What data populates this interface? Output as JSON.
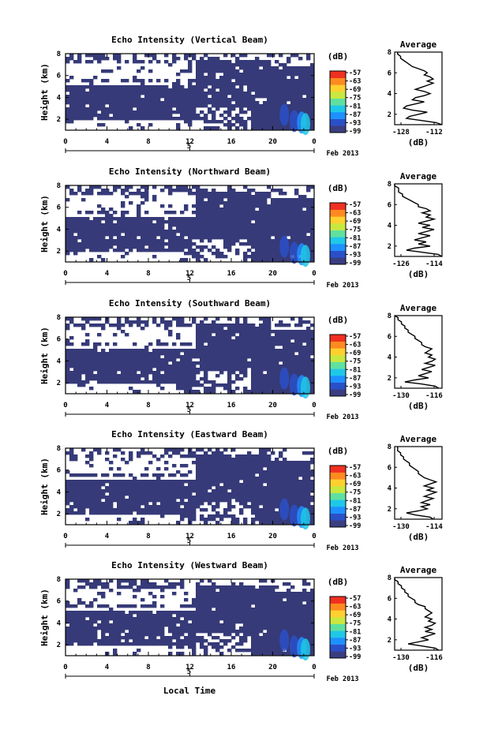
{
  "figure": {
    "xlabel": "Local Time",
    "date_label": "Feb 2013",
    "colorbar_unit": "(dB)",
    "colorbar_ticks": [
      "-57",
      "-63",
      "-69",
      "-75",
      "-81",
      "-87",
      "-93",
      "-99"
    ],
    "colors": {
      "background_echo": "#363a78",
      "colorbar": [
        "#3a3e80",
        "#2a50c8",
        "#1e90ff",
        "#20c8e8",
        "#60e0a0",
        "#c8e840",
        "#ffd030",
        "#ff8a20",
        "#f03020"
      ]
    }
  },
  "chart_data": [
    {
      "type": "heatmap",
      "title": "Echo Intensity (Vertical Beam)",
      "ylabel": "Height (km)",
      "xticks": [
        "0",
        "4",
        "8",
        "12",
        "16",
        "20",
        "0"
      ],
      "xsubtick": "5",
      "yticks": [
        "2",
        "4",
        "6",
        "8"
      ],
      "xlim": [
        0,
        24
      ],
      "ylim": [
        1,
        8
      ],
      "profile": {
        "title": "Average",
        "xlabel": "(dB)",
        "xticks": [
          "-128",
          "-112"
        ],
        "yticks": [
          "2",
          "4",
          "6",
          "8"
        ],
        "xlim": [
          -128,
          -112
        ],
        "values": [
          [
            1.0,
            -112
          ],
          [
            1.2,
            -114
          ],
          [
            1.4,
            -119
          ],
          [
            1.6,
            -124
          ],
          [
            1.8,
            -123
          ],
          [
            2.0,
            -120
          ],
          [
            2.2,
            -117
          ],
          [
            2.4,
            -122
          ],
          [
            2.6,
            -125
          ],
          [
            2.8,
            -124
          ],
          [
            3.0,
            -121
          ],
          [
            3.2,
            -118
          ],
          [
            3.4,
            -122
          ],
          [
            3.6,
            -121
          ],
          [
            3.8,
            -118
          ],
          [
            4.0,
            -116
          ],
          [
            4.2,
            -118
          ],
          [
            4.4,
            -121
          ],
          [
            4.6,
            -119
          ],
          [
            4.8,
            -117
          ],
          [
            5.0,
            -115
          ],
          [
            5.2,
            -117
          ],
          [
            5.4,
            -115
          ],
          [
            5.6,
            -116
          ],
          [
            5.8,
            -118
          ],
          [
            6.0,
            -117
          ],
          [
            6.2,
            -118
          ],
          [
            6.4,
            -120
          ],
          [
            6.6,
            -122
          ],
          [
            6.8,
            -123
          ],
          [
            7.0,
            -124
          ],
          [
            7.2,
            -125
          ],
          [
            7.4,
            -126
          ],
          [
            7.6,
            -126
          ],
          [
            7.8,
            -127
          ],
          [
            8.0,
            -127
          ]
        ]
      }
    },
    {
      "type": "heatmap",
      "title": "Echo Intensity (Northward Beam)",
      "ylabel": "Height (km)",
      "xticks": [
        "0",
        "4",
        "8",
        "12",
        "16",
        "20",
        "0"
      ],
      "xsubtick": "5",
      "yticks": [
        "2",
        "4",
        "6",
        "8"
      ],
      "xlim": [
        0,
        24
      ],
      "ylim": [
        1,
        8
      ],
      "profile": {
        "title": "Average",
        "xlabel": "(dB)",
        "xticks": [
          "-126",
          "-114"
        ],
        "yticks": [
          "2",
          "4",
          "6",
          "8"
        ],
        "xlim": [
          -126,
          -114
        ],
        "values": [
          [
            1.0,
            -114
          ],
          [
            1.2,
            -115
          ],
          [
            1.4,
            -119
          ],
          [
            1.6,
            -123
          ],
          [
            1.8,
            -121
          ],
          [
            2.0,
            -117
          ],
          [
            2.2,
            -120
          ],
          [
            2.4,
            -118
          ],
          [
            2.6,
            -121
          ],
          [
            2.8,
            -119
          ],
          [
            3.0,
            -117
          ],
          [
            3.2,
            -120
          ],
          [
            3.4,
            -118
          ],
          [
            3.6,
            -116
          ],
          [
            3.8,
            -119
          ],
          [
            4.0,
            -117
          ],
          [
            4.2,
            -120
          ],
          [
            4.4,
            -118
          ],
          [
            4.6,
            -116
          ],
          [
            4.8,
            -118
          ],
          [
            5.0,
            -117
          ],
          [
            5.2,
            -119
          ],
          [
            5.4,
            -117
          ],
          [
            5.6,
            -118
          ],
          [
            5.8,
            -120
          ],
          [
            6.0,
            -120
          ],
          [
            6.2,
            -121
          ],
          [
            6.4,
            -122
          ],
          [
            6.6,
            -123
          ],
          [
            6.8,
            -124
          ],
          [
            7.0,
            -124
          ],
          [
            7.2,
            -125
          ],
          [
            7.4,
            -125
          ],
          [
            7.6,
            -125
          ],
          [
            7.8,
            -126
          ],
          [
            8.0,
            -126
          ]
        ]
      }
    },
    {
      "type": "heatmap",
      "title": "Echo Intensity (Southward Beam)",
      "ylabel": "Height (km)",
      "xticks": [
        "0",
        "4",
        "8",
        "12",
        "16",
        "20",
        "0"
      ],
      "xsubtick": "5",
      "yticks": [
        "2",
        "4",
        "6",
        "8"
      ],
      "xlim": [
        0,
        24
      ],
      "ylim": [
        1,
        8
      ],
      "profile": {
        "title": "Average",
        "xlabel": "(dB)",
        "xticks": [
          "-130",
          "-116"
        ],
        "yticks": [
          "2",
          "4",
          "6",
          "8"
        ],
        "xlim": [
          -130,
          -116
        ],
        "values": [
          [
            1.0,
            -117
          ],
          [
            1.2,
            -118
          ],
          [
            1.4,
            -122
          ],
          [
            1.6,
            -127
          ],
          [
            1.8,
            -124
          ],
          [
            2.0,
            -120
          ],
          [
            2.2,
            -123
          ],
          [
            2.4,
            -121
          ],
          [
            2.6,
            -119
          ],
          [
            2.8,
            -122
          ],
          [
            3.0,
            -120
          ],
          [
            3.2,
            -118
          ],
          [
            3.4,
            -121
          ],
          [
            3.6,
            -119
          ],
          [
            3.8,
            -118
          ],
          [
            4.0,
            -120
          ],
          [
            4.2,
            -119
          ],
          [
            4.4,
            -121
          ],
          [
            4.6,
            -120
          ],
          [
            4.8,
            -119
          ],
          [
            5.0,
            -121
          ],
          [
            5.2,
            -122
          ],
          [
            5.4,
            -122
          ],
          [
            5.6,
            -123
          ],
          [
            5.8,
            -124
          ],
          [
            6.0,
            -124
          ],
          [
            6.2,
            -125
          ],
          [
            6.4,
            -126
          ],
          [
            6.6,
            -126
          ],
          [
            6.8,
            -127
          ],
          [
            7.0,
            -127
          ],
          [
            7.2,
            -128
          ],
          [
            7.4,
            -128
          ],
          [
            7.6,
            -129
          ],
          [
            7.8,
            -129
          ],
          [
            8.0,
            -130
          ]
        ]
      }
    },
    {
      "type": "heatmap",
      "title": "Echo Intensity (Eastward Beam)",
      "ylabel": "Height (km)",
      "xticks": [
        "0",
        "4",
        "8",
        "12",
        "16",
        "20",
        "0"
      ],
      "xsubtick": "5",
      "yticks": [
        "2",
        "4",
        "6",
        "8"
      ],
      "xlim": [
        0,
        24
      ],
      "ylim": [
        1,
        8
      ],
      "profile": {
        "title": "Average",
        "xlabel": "(dB)",
        "xticks": [
          "-130",
          "-114"
        ],
        "yticks": [
          "2",
          "4",
          "6",
          "8"
        ],
        "xlim": [
          -130,
          -114
        ],
        "values": [
          [
            1.0,
            -117
          ],
          [
            1.2,
            -118
          ],
          [
            1.4,
            -123
          ],
          [
            1.6,
            -126
          ],
          [
            1.8,
            -122
          ],
          [
            2.0,
            -119
          ],
          [
            2.2,
            -121
          ],
          [
            2.4,
            -118
          ],
          [
            2.6,
            -121
          ],
          [
            2.8,
            -119
          ],
          [
            3.0,
            -117
          ],
          [
            3.2,
            -120
          ],
          [
            3.4,
            -118
          ],
          [
            3.6,
            -116
          ],
          [
            3.8,
            -119
          ],
          [
            4.0,
            -117
          ],
          [
            4.2,
            -120
          ],
          [
            4.4,
            -118
          ],
          [
            4.6,
            -116
          ],
          [
            4.8,
            -118
          ],
          [
            5.0,
            -120
          ],
          [
            5.2,
            -121
          ],
          [
            5.4,
            -122
          ],
          [
            5.6,
            -122
          ],
          [
            5.8,
            -123
          ],
          [
            6.0,
            -124
          ],
          [
            6.2,
            -125
          ],
          [
            6.4,
            -125
          ],
          [
            6.6,
            -126
          ],
          [
            6.8,
            -127
          ],
          [
            7.0,
            -127
          ],
          [
            7.2,
            -128
          ],
          [
            7.4,
            -128
          ],
          [
            7.6,
            -129
          ],
          [
            7.8,
            -129
          ],
          [
            8.0,
            -129
          ]
        ]
      }
    },
    {
      "type": "heatmap",
      "title": "Echo Intensity (Westward Beam)",
      "ylabel": "Height (km)",
      "xticks": [
        "0",
        "4",
        "8",
        "12",
        "16",
        "20",
        "0"
      ],
      "xsubtick": "5",
      "yticks": [
        "2",
        "4",
        "6",
        "8"
      ],
      "xlim": [
        0,
        24
      ],
      "ylim": [
        1,
        8
      ],
      "profile": {
        "title": "Average",
        "xlabel": "(dB)",
        "xticks": [
          "-130",
          "-116"
        ],
        "yticks": [
          "2",
          "4",
          "6",
          "8"
        ],
        "xlim": [
          -130,
          -116
        ],
        "values": [
          [
            1.0,
            -117
          ],
          [
            1.2,
            -118
          ],
          [
            1.4,
            -122
          ],
          [
            1.6,
            -126
          ],
          [
            1.8,
            -123
          ],
          [
            2.0,
            -120
          ],
          [
            2.2,
            -122
          ],
          [
            2.4,
            -120
          ],
          [
            2.6,
            -118
          ],
          [
            2.8,
            -121
          ],
          [
            3.0,
            -119
          ],
          [
            3.2,
            -121
          ],
          [
            3.4,
            -119
          ],
          [
            3.6,
            -118
          ],
          [
            3.8,
            -120
          ],
          [
            4.0,
            -119
          ],
          [
            4.2,
            -121
          ],
          [
            4.4,
            -120
          ],
          [
            4.6,
            -119
          ],
          [
            4.8,
            -120
          ],
          [
            5.0,
            -121
          ],
          [
            5.2,
            -121
          ],
          [
            5.4,
            -123
          ],
          [
            5.6,
            -124
          ],
          [
            5.8,
            -124
          ],
          [
            6.0,
            -125
          ],
          [
            6.2,
            -126
          ],
          [
            6.4,
            -126
          ],
          [
            6.6,
            -127
          ],
          [
            6.8,
            -127
          ],
          [
            7.0,
            -128
          ],
          [
            7.2,
            -128
          ],
          [
            7.4,
            -129
          ],
          [
            7.6,
            -129
          ],
          [
            7.8,
            -130
          ],
          [
            8.0,
            -130
          ]
        ]
      }
    }
  ]
}
